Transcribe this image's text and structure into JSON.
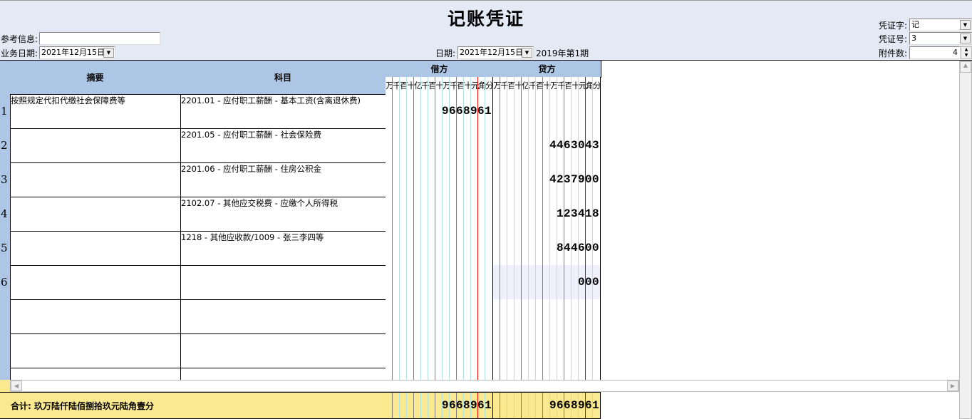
{
  "title": "记账凭证",
  "header": {
    "ref_label": "参考信息:",
    "ref_value": "",
    "biz_date_label": "业务日期:",
    "biz_date_value": "2021年12月15日",
    "date_label": "日期:",
    "date_value": "2021年12月15日",
    "period": "2019年第1期",
    "voucher_word_label": "凭证字:",
    "voucher_word_value": "记",
    "voucher_no_label": "凭证号:",
    "voucher_no_value": "3",
    "attach_label": "附件数:",
    "attach_value": "4"
  },
  "table": {
    "col_summary": "摘要",
    "col_account": "科目",
    "col_debit": "借方",
    "col_credit": "贷方",
    "units": [
      "万",
      "千",
      "百",
      "十",
      "亿",
      "千",
      "百",
      "十",
      "万",
      "千",
      "百",
      "十",
      "元",
      "角",
      "分"
    ],
    "rows": [
      {
        "no": "1",
        "summary": "按照规定代扣代缴社会保障费等",
        "account": "2201.01 - 应付职工薪酬 - 基本工资(含离退休费)",
        "debit": "9668961",
        "credit": ""
      },
      {
        "no": "2",
        "summary": "",
        "account": "2201.05 - 应付职工薪酬 - 社会保险费",
        "debit": "",
        "credit": "4463043"
      },
      {
        "no": "3",
        "summary": "",
        "account": "2201.06 - 应付职工薪酬 - 住房公积金",
        "debit": "",
        "credit": "4237900"
      },
      {
        "no": "4",
        "summary": "",
        "account": "2102.07 - 其他应交税费 - 应缴个人所得税",
        "debit": "",
        "credit": "123418"
      },
      {
        "no": "5",
        "summary": "",
        "account": "1218 - 其他应收款/1009 - 张三李四等",
        "debit": "",
        "credit": "844600"
      },
      {
        "no": "6",
        "summary": "",
        "account": "",
        "debit": "",
        "credit": "000",
        "selected": true
      },
      {
        "no": "",
        "summary": "",
        "account": "",
        "debit": "",
        "credit": ""
      },
      {
        "no": "",
        "summary": "",
        "account": "",
        "debit": "",
        "credit": ""
      },
      {
        "no": "",
        "summary": "",
        "account": "",
        "debit": "",
        "credit": ""
      }
    ],
    "total_label": "合计:  玖万陆仟陆佰捌拾玖元陆角壹分",
    "total_debit": "9668961",
    "total_credit": "9668961"
  },
  "colors": {
    "header_bg": "#adc6e6",
    "total_bg": "#fbe98f",
    "selected_bg": "#f0f0fc",
    "yuan_line": "#ff0000"
  }
}
